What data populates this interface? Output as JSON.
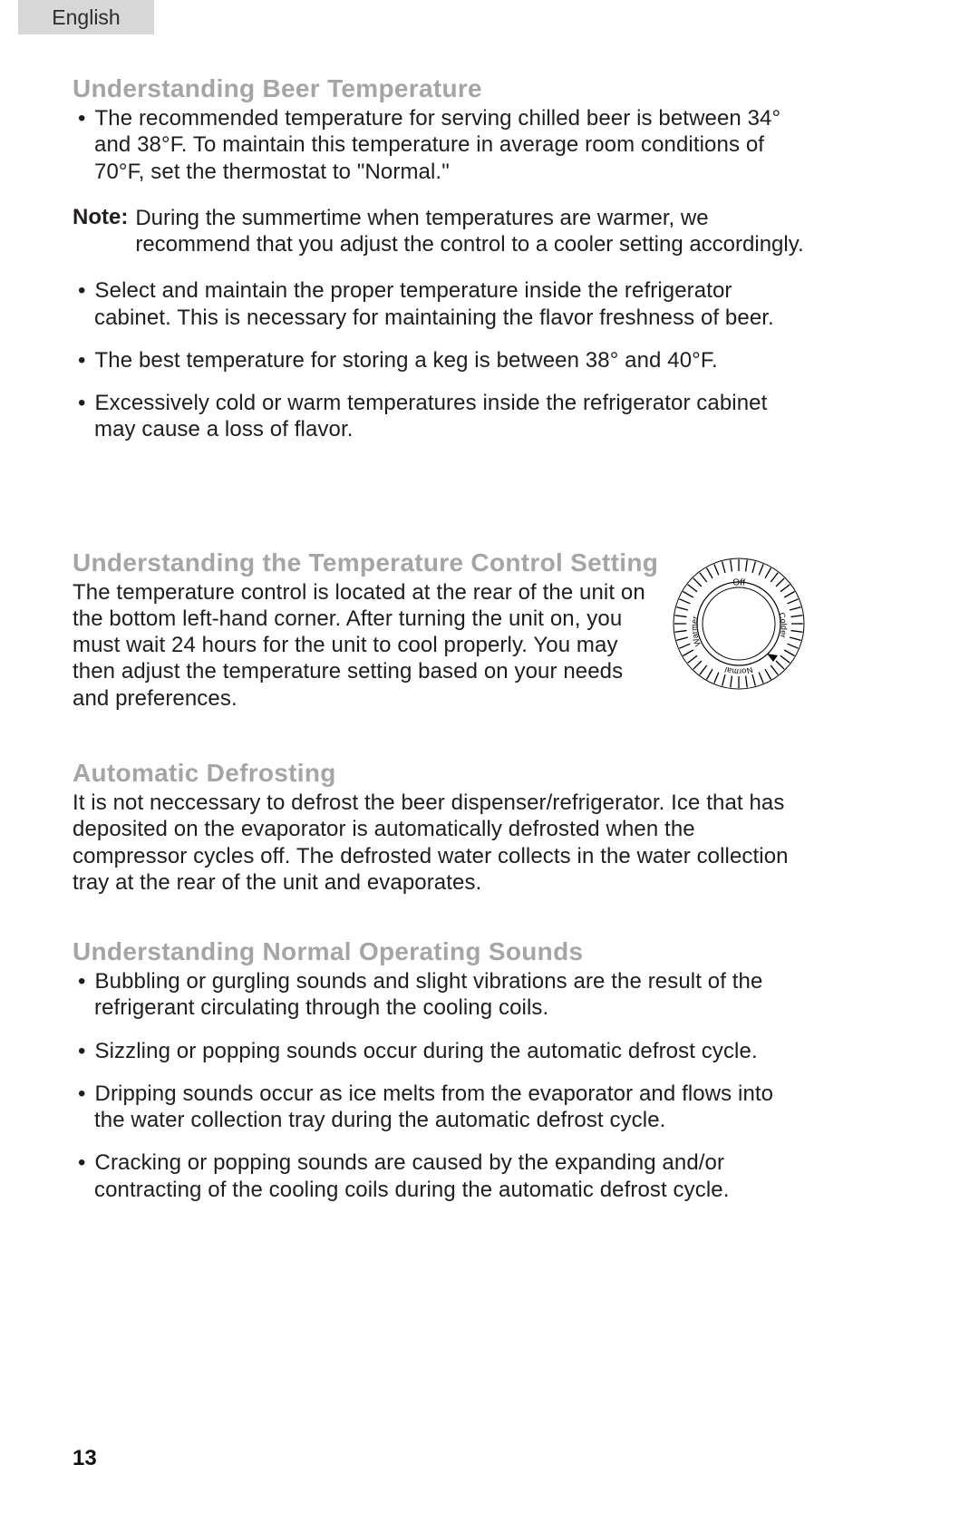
{
  "lang_tab": "English",
  "page_number": "13",
  "sec1": {
    "heading": "Understanding Beer Temperature",
    "bullets_a": [
      "The recommended temperature for serving chilled beer is between 34° and 38°F. To maintain this temperature in average room conditions of 70°F, set the thermostat to \"Normal.\""
    ],
    "note_label": "Note:",
    "note_body": "During the summertime when temperatures are warmer, we recommend that you adjust the control to a cooler setting accordingly.",
    "bullets_b": [
      "Select and maintain the proper temperature inside the refrigerator cabinet. This is necessary for maintaining the flavor freshness of beer.",
      "The best temperature for storing a keg is between 38° and 40°F.",
      "Excessively cold or warm temperatures inside the refrigerator cabinet may cause a loss of flavor."
    ]
  },
  "sec2": {
    "heading": "Understanding the Temperature Control Setting",
    "body": "The temperature control is located at the rear of the unit on the bottom left-hand corner. After turning the unit on, you must wait 24 hours for the unit to cool properly. You may then adjust the temperature setting based on your needs and preferences.",
    "dial": {
      "label_off": "Off",
      "label_colder": "Colder",
      "label_normal": "Normal",
      "label_warmer": "Warmer",
      "stroke": "#000000",
      "bg": "#ffffff"
    }
  },
  "sec3": {
    "heading": "Automatic Defrosting",
    "body": "It is not neccessary to defrost the beer dispenser/refrigerator. Ice that has deposited on the evaporator is automatically defrosted when the compressor cycles off. The defrosted water collects in the water collection tray at the rear of the unit and evaporates."
  },
  "sec4": {
    "heading": "Understanding Normal Operating Sounds",
    "bullets": [
      "Bubbling or gurgling sounds and slight vibrations are the result of the refrigerant circulating through the cooling coils.",
      "Sizzling or popping sounds occur during the automatic defrost cycle.",
      "Dripping sounds occur as ice melts from the evaporator and flows into the water collection tray during the automatic defrost cycle.",
      "Cracking or popping sounds are caused by the expanding and/or contracting of the cooling coils during the automatic defrost cycle."
    ]
  }
}
